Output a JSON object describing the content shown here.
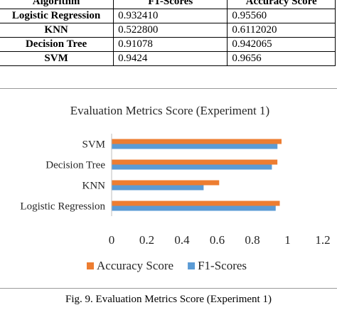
{
  "table": {
    "headers": [
      "Algorithm",
      "F1-Scores",
      "Accuracy Score"
    ],
    "rows": [
      [
        "Logistic Regression",
        "0.932410",
        "0.95560"
      ],
      [
        "KNN",
        "0.522800",
        "0.6112020"
      ],
      [
        "Decision Tree",
        "0.91078",
        "0.942065"
      ],
      [
        "SVM",
        "0.9424",
        "0.9656"
      ]
    ]
  },
  "chart_data": {
    "type": "bar",
    "orientation": "horizontal",
    "title": "Evaluation Metrics Score (Experiment 1)",
    "categories": [
      "Logistic Regression",
      "KNN",
      "Decision Tree",
      "SVM"
    ],
    "series": [
      {
        "name": "Accuracy Score",
        "color": "#ED7D31",
        "values": [
          0.9556,
          0.6112,
          0.942065,
          0.9656
        ]
      },
      {
        "name": "F1-Scores",
        "color": "#5B9BD5",
        "values": [
          0.93241,
          0.5228,
          0.91078,
          0.9424
        ]
      }
    ],
    "xlim": [
      0,
      1.2
    ],
    "xticks": [
      "0",
      "0.2",
      "0.4",
      "0.6",
      "0.8",
      "1",
      "1.2"
    ],
    "grid": false,
    "legend": "bottom"
  },
  "caption": "Fig. 9. Evaluation Metrics Score (Experiment 1)"
}
